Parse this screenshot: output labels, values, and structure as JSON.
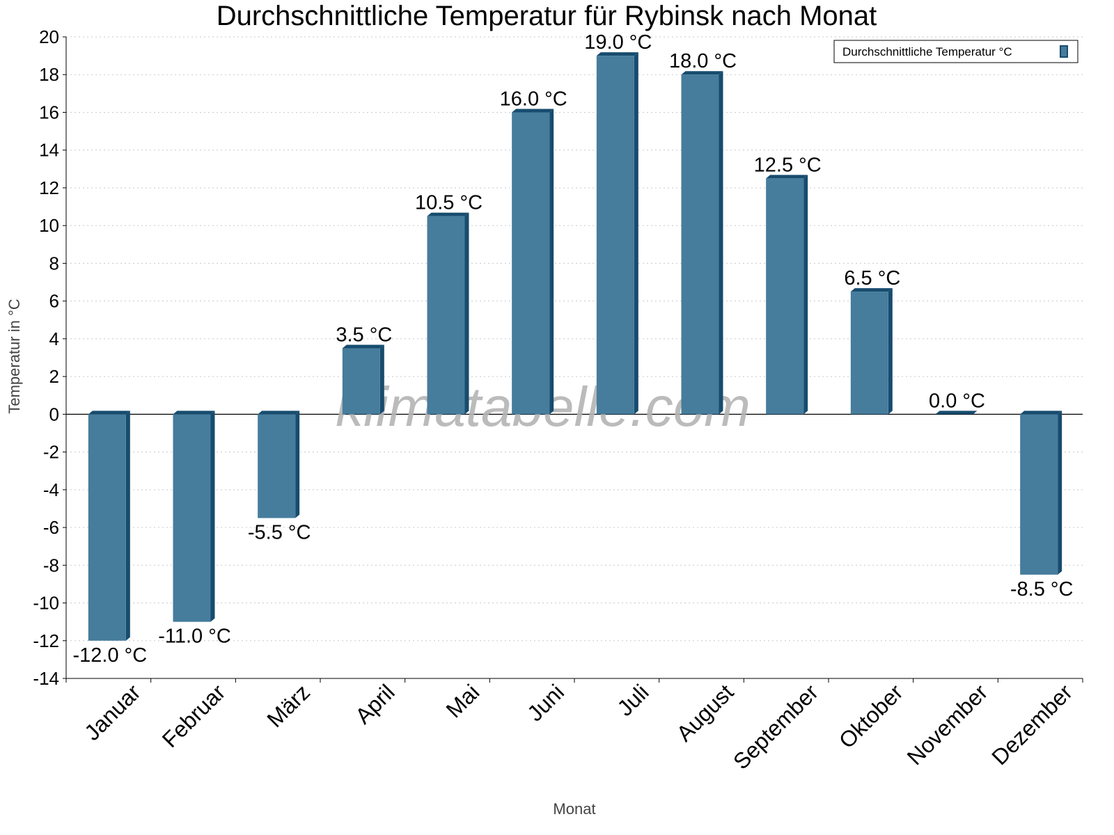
{
  "chart_data": {
    "type": "bar",
    "title": "Durchschnittliche Temperatur für Rybinsk nach Monat",
    "xlabel": "Monat",
    "ylabel": "Temperatur in °C",
    "categories": [
      "Januar",
      "Februar",
      "März",
      "April",
      "Mai",
      "Juni",
      "Juli",
      "August",
      "September",
      "Oktober",
      "November",
      "Dezember"
    ],
    "series": [
      {
        "name": "Durchschnittliche Temperatur °C",
        "values": [
          -12.0,
          -11.0,
          -5.5,
          3.5,
          10.5,
          16.0,
          19.0,
          18.0,
          12.5,
          6.5,
          0.0,
          -8.5
        ]
      }
    ],
    "data_labels": [
      "-12.0 °C",
      "-11.0 °C",
      "-5.5 °C",
      "3.5 °C",
      "10.5 °C",
      "16.0 °C",
      "19.0 °C",
      "18.0 °C",
      "12.5 °C",
      "6.5 °C",
      "0.0 °C",
      "-8.5 °C"
    ],
    "ylim": [
      -14,
      20
    ],
    "yticks": [
      20,
      18,
      16,
      14,
      12,
      10,
      8,
      6,
      4,
      2,
      0,
      -2,
      -4,
      -6,
      -8,
      -10,
      -12,
      -14
    ],
    "grid": true,
    "legend": "top-right",
    "watermark": "klimatabelle.com",
    "colors": {
      "bar_front": "#467c9c",
      "bar_side": "#174c6e",
      "grid": "#c8c8c8",
      "axis": "#000000",
      "watermark": "#b4b4b4"
    }
  }
}
